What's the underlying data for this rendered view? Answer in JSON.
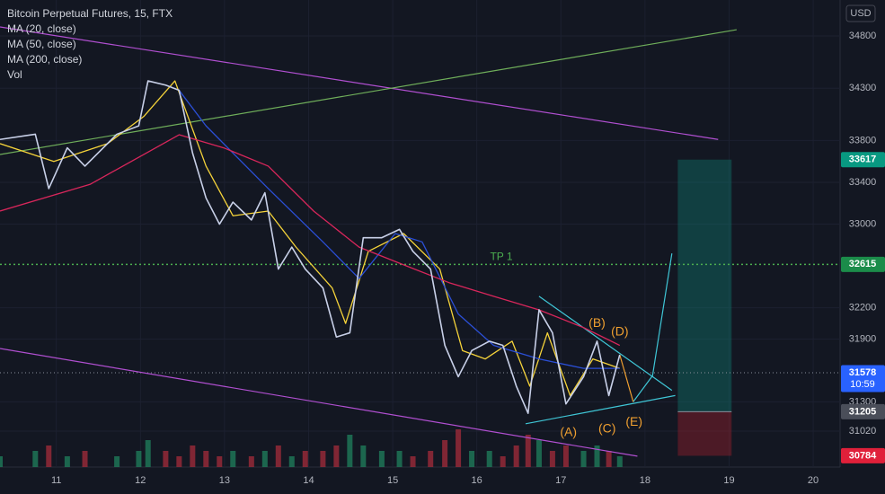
{
  "chart_data": {
    "type": "line",
    "title": "Bitcoin Perpetual Futures, 15, FTX",
    "currency": "USD",
    "xlim": [
      10.33,
      20.32
    ],
    "xticks": [
      11,
      12,
      13,
      14,
      15,
      16,
      17,
      18,
      19,
      20
    ],
    "ylim": [
      30676,
      35144
    ],
    "yticks": [
      34800,
      34300,
      33800,
      33400,
      33000,
      32200,
      31900,
      31300,
      31020
    ],
    "grid": true,
    "price": {
      "color": "#c8d0e8",
      "x": [
        10.33,
        10.75,
        10.91,
        11.13,
        11.34,
        11.72,
        11.98,
        12.09,
        12.3,
        12.46,
        12.62,
        12.78,
        12.94,
        13.1,
        13.32,
        13.48,
        13.64,
        13.8,
        13.96,
        14.17,
        14.33,
        14.49,
        14.65,
        14.87,
        15.08,
        15.24,
        15.45,
        15.62,
        15.78,
        15.94,
        16.15,
        16.31,
        16.47,
        16.61,
        16.74,
        16.9,
        17.06,
        17.27,
        17.43,
        17.57,
        17.7
      ],
      "values": [
        33810,
        33860,
        33340,
        33730,
        33555,
        33860,
        33940,
        34370,
        34330,
        34280,
        33680,
        33250,
        33000,
        33210,
        33040,
        33300,
        32570,
        32780,
        32570,
        32390,
        31920,
        31960,
        32870,
        32870,
        32950,
        32740,
        32570,
        31840,
        31540,
        31790,
        31880,
        31840,
        31450,
        31190,
        32180,
        31960,
        31280,
        31540,
        31880,
        31360,
        31750
      ]
    },
    "series": [
      {
        "name": "MA (20, close)",
        "color": "#f5d33a",
        "x": [
          10.33,
          10.97,
          11.61,
          12.04,
          12.41,
          12.78,
          13.1,
          13.52,
          13.85,
          14.28,
          14.44,
          14.71,
          15.13,
          15.56,
          15.83,
          16.1,
          16.42,
          16.63,
          16.84,
          17.11,
          17.38,
          17.7
        ],
        "values": [
          33770,
          33600,
          33770,
          34030,
          34370,
          33555,
          33080,
          33125,
          32780,
          32390,
          32050,
          32740,
          32910,
          32570,
          31790,
          31710,
          31880,
          31450,
          31960,
          31360,
          31710,
          31620
        ]
      },
      {
        "name": "MA (50, close)",
        "color": "#2b4fd6",
        "x": [
          12.46,
          12.78,
          13.52,
          14.17,
          14.6,
          15.03,
          15.35,
          15.78,
          16.2,
          16.74,
          17.27,
          17.7
        ],
        "values": [
          34280,
          33940,
          33340,
          32830,
          32480,
          32910,
          32830,
          32140,
          31840,
          31710,
          31620,
          31620
        ]
      },
      {
        "name": "MA (200, close)",
        "color": "#d8265b",
        "x": [
          10.33,
          11.4,
          12.46,
          12.99,
          13.52,
          14.06,
          14.6,
          15.13,
          15.67,
          16.2,
          16.74,
          17.27,
          17.7
        ],
        "values": [
          33125,
          33380,
          33855,
          33730,
          33555,
          33125,
          32780,
          32610,
          32440,
          32310,
          32180,
          32010,
          31840
        ]
      }
    ],
    "volume": {
      "name": "Vol",
      "lim": [
        0,
        10
      ],
      "values": [
        2,
        3,
        4,
        2,
        3,
        2,
        3,
        5,
        3,
        2,
        4,
        3,
        2,
        3,
        2,
        3,
        4,
        2,
        3,
        3,
        4,
        6,
        4,
        3,
        3,
        2,
        3,
        5,
        7,
        3,
        3,
        2,
        4,
        6,
        5,
        3,
        4,
        3,
        4,
        3,
        2
      ]
    },
    "drawings": [
      {
        "color": "#b04fd0",
        "x": [
          10.33,
          18.87
        ],
        "values": [
          34886,
          33810
        ]
      },
      {
        "color": "#6fae5a",
        "x": [
          10.33,
          19.09
        ],
        "values": [
          33666,
          34860
        ]
      },
      {
        "color": "#b04fd0",
        "x": [
          10.33,
          17.91
        ],
        "values": [
          31810,
          30780
        ]
      },
      {
        "color": "#3fc6d6",
        "x": [
          16.74,
          18.32
        ],
        "values": [
          32310,
          31410
        ]
      },
      {
        "color": "#3fc6d6",
        "x": [
          16.58,
          18.36
        ],
        "values": [
          31090,
          31360
        ]
      },
      {
        "color": "#3fc6d6",
        "x": [
          17.86,
          18.09,
          18.32
        ],
        "values": [
          31300,
          31550,
          32720
        ]
      },
      {
        "color": "#f0a030",
        "x": [
          17.7,
          17.86
        ],
        "values": [
          31750,
          31300
        ]
      }
    ],
    "target_line": {
      "label": "TP 1",
      "value": 32615,
      "color": "#4caf50"
    },
    "position": {
      "x": [
        18.39,
        19.03
      ],
      "target": 33617,
      "entry": 31205,
      "stop": 30784
    },
    "wave_labels": [
      {
        "label": "(A)",
        "x": 17.09,
        "value": 31003
      },
      {
        "label": "(B)",
        "x": 17.43,
        "value": 32050
      },
      {
        "label": "(C)",
        "x": 17.55,
        "value": 31040
      },
      {
        "label": "(D)",
        "x": 17.7,
        "value": 31965
      },
      {
        "label": "(E)",
        "x": 17.87,
        "value": 31105
      }
    ],
    "price_labels": [
      {
        "value": 33617,
        "color": "#089981"
      },
      {
        "value": 32615,
        "color": "#1b8c4a"
      },
      {
        "value": 31578,
        "sub": "10:59",
        "color": "#2962ff"
      },
      {
        "value": 31205,
        "color": "#4a4e59"
      },
      {
        "value": 30784,
        "color": "#e0203a"
      }
    ]
  }
}
